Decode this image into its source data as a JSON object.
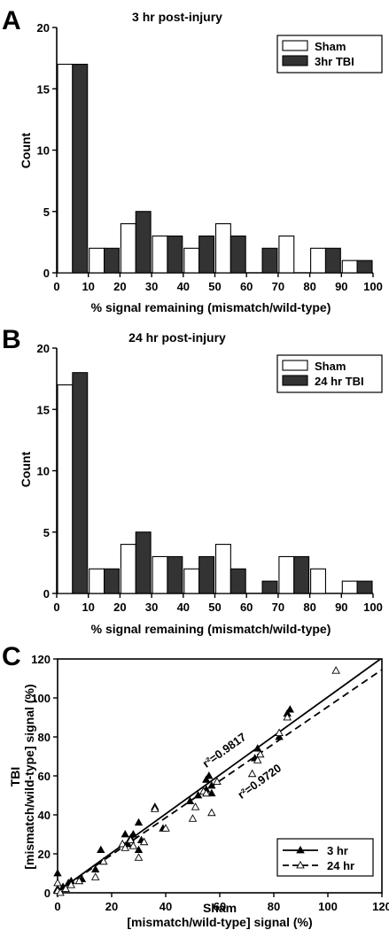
{
  "panels": {
    "a_letter": "A",
    "b_letter": "B",
    "c_letter": "C"
  },
  "chart_data": [
    {
      "type": "bar",
      "panel": "A",
      "title": "3 hr post-injury",
      "xlabel": "% signal remaining (mismatch/wild-type)",
      "ylabel": "Count",
      "xlim": [
        0,
        100
      ],
      "ylim": [
        0,
        20
      ],
      "xticks": [
        "0",
        "10",
        "20",
        "30",
        "40",
        "50",
        "60",
        "70",
        "80",
        "90",
        "100"
      ],
      "yticks": [
        "0",
        "5",
        "10",
        "15",
        "20"
      ],
      "bin_starts": [
        0,
        10,
        20,
        30,
        40,
        50,
        60,
        70,
        80,
        90
      ],
      "bin_width": 10,
      "legend_position": "top-right",
      "series": [
        {
          "name": "Sham",
          "color": "#ffffff",
          "values": [
            17,
            2,
            4,
            3,
            2,
            4,
            0,
            3,
            2,
            1
          ]
        },
        {
          "name": "3hr TBI",
          "color": "#333333",
          "values": [
            17,
            2,
            5,
            3,
            3,
            3,
            2,
            0,
            2,
            1
          ]
        }
      ]
    },
    {
      "type": "bar",
      "panel": "B",
      "title": "24 hr post-injury",
      "xlabel": "% signal remaining (mismatch/wild-type)",
      "ylabel": "Count",
      "xlim": [
        0,
        100
      ],
      "ylim": [
        0,
        20
      ],
      "xticks": [
        "0",
        "10",
        "20",
        "30",
        "40",
        "50",
        "60",
        "70",
        "80",
        "90",
        "100"
      ],
      "yticks": [
        "0",
        "5",
        "10",
        "15",
        "20"
      ],
      "bin_starts": [
        0,
        10,
        20,
        30,
        40,
        50,
        60,
        70,
        80,
        90
      ],
      "bin_width": 10,
      "legend_position": "top-right",
      "series": [
        {
          "name": "Sham",
          "color": "#ffffff",
          "values": [
            17,
            2,
            4,
            3,
            2,
            4,
            0,
            3,
            2,
            1
          ]
        },
        {
          "name": "24 hr TBI",
          "color": "#333333",
          "values": [
            18,
            2,
            5,
            3,
            3,
            2,
            1,
            3,
            0,
            1
          ]
        }
      ]
    },
    {
      "type": "scatter",
      "panel": "C",
      "xlabel_line1": "Sham",
      "xlabel_line2": "[mismatch/wild-type] signal (%)",
      "ylabel_line1": "TBI",
      "ylabel_line2": "[mismatch/wild-type] signal (%)",
      "xlim": [
        0,
        120
      ],
      "ylim": [
        0,
        120
      ],
      "xticks": [
        "0",
        "20",
        "40",
        "60",
        "80",
        "100",
        "120"
      ],
      "yticks": [
        "0",
        "20",
        "40",
        "60",
        "80",
        "100",
        "120"
      ],
      "legend_position": "bottom-right",
      "series": [
        {
          "name": "3 hr",
          "marker": "filled-triangle",
          "line_style": "solid",
          "fit": {
            "slope": 1.0,
            "intercept": 0.5
          },
          "r2_label": "r²=0.9817",
          "points": [
            [
              0,
              10
            ],
            [
              0,
              2
            ],
            [
              2,
              3
            ],
            [
              4,
              5
            ],
            [
              5,
              6
            ],
            [
              9,
              7
            ],
            [
              14,
              12
            ],
            [
              16,
              22
            ],
            [
              25,
              30
            ],
            [
              26,
              25
            ],
            [
              27,
              28
            ],
            [
              28,
              30
            ],
            [
              30,
              36
            ],
            [
              30,
              22
            ],
            [
              31,
              27
            ],
            [
              36,
              44
            ],
            [
              39,
              33
            ],
            [
              49,
              47
            ],
            [
              52,
              50
            ],
            [
              55,
              58
            ],
            [
              55,
              53
            ],
            [
              56,
              60
            ],
            [
              57,
              51
            ],
            [
              57,
              55
            ],
            [
              73,
              69
            ],
            [
              74,
              74
            ],
            [
              82,
              80
            ],
            [
              85,
              92
            ],
            [
              86,
              94
            ]
          ]
        },
        {
          "name": "24 hr",
          "marker": "open-triangle",
          "line_style": "dashed",
          "fit": {
            "slope": 0.95,
            "intercept": 0.5
          },
          "r2_label": "r²=0.9720",
          "points": [
            [
              0,
              5
            ],
            [
              0,
              1
            ],
            [
              1,
              0
            ],
            [
              3,
              2
            ],
            [
              5,
              4
            ],
            [
              8,
              6
            ],
            [
              14,
              8
            ],
            [
              17,
              16
            ],
            [
              24,
              25
            ],
            [
              25,
              23
            ],
            [
              27,
              27
            ],
            [
              28,
              24
            ],
            [
              30,
              18
            ],
            [
              32,
              26
            ],
            [
              36,
              43
            ],
            [
              40,
              33
            ],
            [
              50,
              38
            ],
            [
              51,
              44
            ],
            [
              54,
              52
            ],
            [
              55,
              51
            ],
            [
              57,
              41
            ],
            [
              59,
              57
            ],
            [
              72,
              61
            ],
            [
              74,
              68
            ],
            [
              75,
              71
            ],
            [
              82,
              82
            ],
            [
              85,
              90
            ],
            [
              103,
              114
            ]
          ]
        }
      ]
    }
  ]
}
